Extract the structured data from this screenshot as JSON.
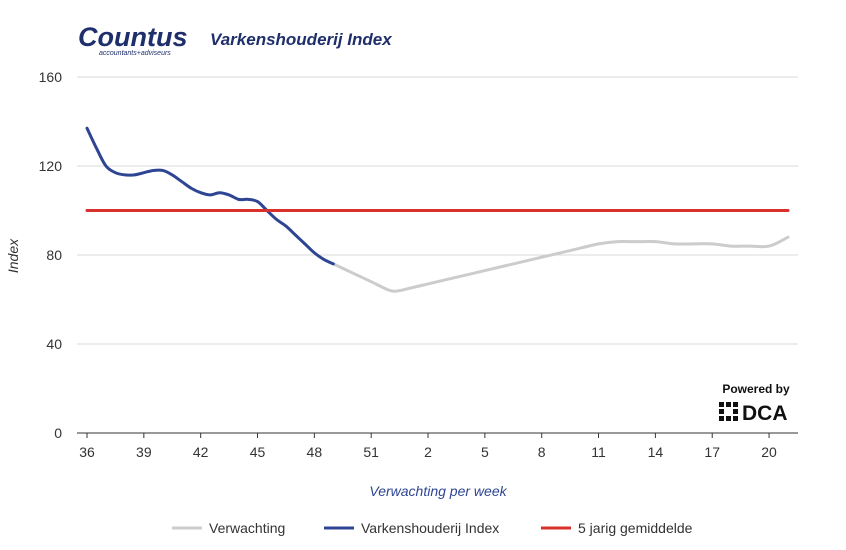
{
  "branding": {
    "logo_text": "Countus",
    "logo_subtext": "accountants+adviseurs",
    "powered_by": "Powered by",
    "powered_brand": "DCA"
  },
  "chart_data": {
    "type": "line",
    "title": "Varkenshouderij Index",
    "xlabel": "Verwachting per week",
    "ylabel": "Index",
    "ylim": [
      0,
      160
    ],
    "yticks": [
      0,
      40,
      80,
      120,
      160
    ],
    "x_tick_labels": [
      "36",
      "39",
      "42",
      "45",
      "48",
      "51",
      "2",
      "5",
      "8",
      "11",
      "14",
      "17",
      "20"
    ],
    "x_tick_positions": [
      0,
      3,
      6,
      9,
      12,
      15,
      18,
      21,
      24,
      27,
      30,
      33,
      36
    ],
    "x_range": [
      0,
      37
    ],
    "grid": true,
    "legend_position": "bottom",
    "series": [
      {
        "name": "Verwachting",
        "color": "#cccccc",
        "x": [
          13,
          14,
          15,
          16,
          16.5,
          17,
          18,
          19,
          20,
          21,
          22,
          23,
          24,
          25,
          26,
          27,
          28,
          29,
          30,
          31,
          32,
          33,
          34,
          35,
          36,
          37
        ],
        "values": [
          76,
          72,
          68,
          64,
          64,
          65,
          67,
          69,
          71,
          73,
          75,
          77,
          79,
          81,
          83,
          85,
          86,
          86,
          86,
          85,
          85,
          85,
          84,
          84,
          84,
          88
        ]
      },
      {
        "name": "Varkenshouderij Index",
        "color": "#2e4593",
        "x": [
          0,
          0.5,
          1,
          1.5,
          2,
          2.5,
          3,
          3.5,
          4,
          4.5,
          5,
          5.5,
          6,
          6.5,
          7,
          7.5,
          8,
          8.5,
          9,
          9.5,
          10,
          10.5,
          11,
          11.5,
          12,
          12.5,
          13
        ],
        "values": [
          137,
          128,
          120,
          117,
          116,
          116,
          117,
          118,
          118,
          116,
          113,
          110,
          108,
          107,
          108,
          107,
          105,
          105,
          104,
          100,
          96,
          93,
          89,
          85,
          81,
          78,
          76
        ]
      },
      {
        "name": "5 jarig gemiddelde",
        "color": "#d9302b",
        "x": [
          0,
          37
        ],
        "values": [
          100,
          100
        ]
      }
    ]
  }
}
